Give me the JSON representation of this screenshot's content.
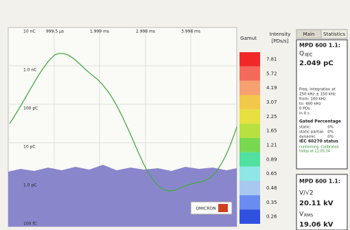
{
  "plot": {
    "x_labels": [
      "999.5 µs",
      "1.999 ms",
      "2.998 ms",
      "3.998 ms"
    ],
    "y_labels": [
      "10 nC",
      "1.0 nC",
      "100 pC",
      "10 pC",
      "1.0 pC",
      "100 fC"
    ],
    "logo": "OMICRON"
  },
  "colorbar": {
    "title": "Gamut",
    "unit_title": "Intensity",
    "unit": "[PDs/s]",
    "bins": [
      {
        "label": "7.81",
        "color": "#f02828"
      },
      {
        "label": "5.72",
        "color": "#f46a5a"
      },
      {
        "label": "4.19",
        "color": "#f6a070"
      },
      {
        "label": "3.07",
        "color": "#f2c84a"
      },
      {
        "label": "2.25",
        "color": "#e6e040"
      },
      {
        "label": "1.65",
        "color": "#b8e040"
      },
      {
        "label": "1.21",
        "color": "#78d850"
      },
      {
        "label": "0.89",
        "color": "#50e0a0"
      },
      {
        "label": "0.65",
        "color": "#8ee6e6"
      },
      {
        "label": "0.48",
        "color": "#a8c8f0"
      },
      {
        "label": "0.35",
        "color": "#6a8cf0"
      },
      {
        "label": "0.26",
        "color": "#3050e0"
      }
    ]
  },
  "tabs": [
    "Main",
    "Statistics"
  ],
  "panel1": {
    "title": "MPD 600 1.1:",
    "q": "Q",
    "q_sub": "IEC",
    "q_value": "2.049 pC",
    "lines": [
      "Freq. integration at",
      "250 kHz ± 150 kHz",
      "from:  100 kHz",
      "to:     400 kHz",
      "0 PDs",
      "in 0 s"
    ],
    "gated_title": "Gated Percentage",
    "gated": [
      [
        "static:",
        "0%"
      ],
      [
        "static partial:",
        "0%"
      ],
      [
        "dynamic",
        "0%"
      ]
    ],
    "iec_title": "IEC 60270 status",
    "iec_lines": [
      "conforming. Calibrated",
      "today at 11:05:34"
    ]
  },
  "panel2": {
    "title": "MPD 600 1.1:",
    "v1": "V/√2",
    "v1_value": "20.11 kV",
    "v2": "V",
    "v2_sub": "RMS",
    "v2_value": "19.06 kV"
  }
}
